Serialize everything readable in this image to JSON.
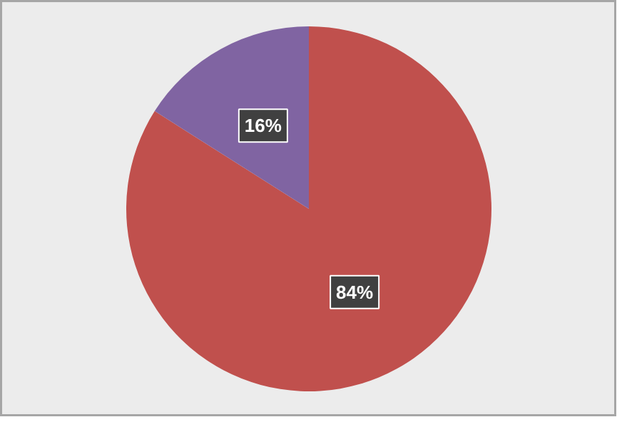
{
  "chart_data": {
    "type": "pie",
    "categories": [
      null,
      null
    ],
    "values": [
      84,
      16
    ],
    "colors": [
      "#c0504d",
      "#8064a2"
    ],
    "value_labels": [
      "84%",
      "16%"
    ]
  }
}
